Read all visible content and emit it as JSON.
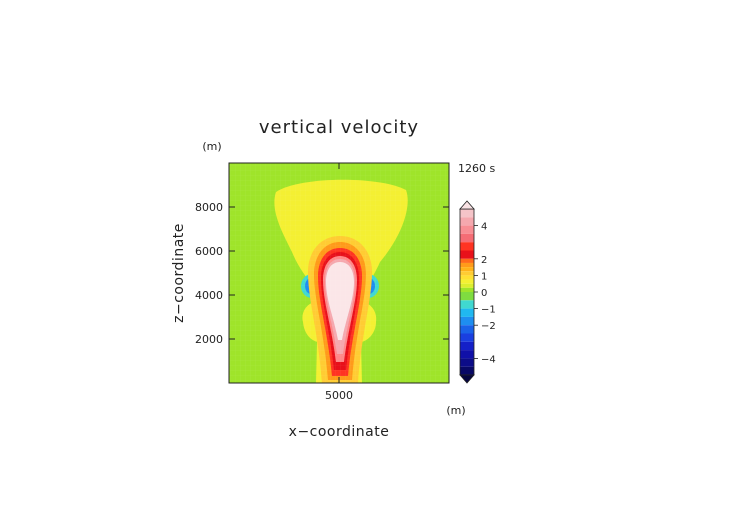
{
  "chart_data": {
    "type": "heatmap",
    "title": "vertical velocity",
    "xlabel": "x−coordinate",
    "ylabel": "z−coordinate",
    "x_unit": "(m)",
    "y_unit": "(m)",
    "time_label": "1260 s",
    "xlim": [
      0,
      10000
    ],
    "ylim": [
      0,
      10000
    ],
    "x_ticks": [
      5000
    ],
    "y_ticks": [
      2000,
      4000,
      6000,
      8000
    ],
    "x_tick_labels": [
      "5000"
    ],
    "y_tick_labels": [
      "2000",
      "4000",
      "6000",
      "8000"
    ],
    "colorbar": {
      "range": [
        -5,
        5
      ],
      "tick_values": [
        4,
        2,
        1,
        0,
        -1,
        -2,
        -4
      ],
      "tick_labels": [
        "4",
        "2",
        "1",
        "0",
        "−1",
        "−2",
        "−4"
      ]
    },
    "field_regions": [
      {
        "name": "background",
        "level": "0 to 0.25",
        "color": "#9fe42a"
      },
      {
        "name": "upper-outflow",
        "level": "0.25 to 0.5",
        "color": "#f4f032",
        "x": [
          2000,
          8000
        ],
        "z": [
          4400,
          8900
        ]
      },
      {
        "name": "updraft-core",
        "level": "> 4",
        "color": "#fbe6e8",
        "x": [
          4300,
          5700
        ],
        "z": [
          1000,
          5900
        ]
      },
      {
        "name": "downdraft-left",
        "level": "− 1.5",
        "color": "#1e8ef0",
        "x": [
          3900,
          4200
        ],
        "z": [
          4000,
          4600
        ]
      },
      {
        "name": "downdraft-right",
        "level": "− 1.5",
        "color": "#1e8ef0",
        "x": [
          5800,
          6100
        ],
        "z": [
          4000,
          4600
        ]
      }
    ]
  }
}
